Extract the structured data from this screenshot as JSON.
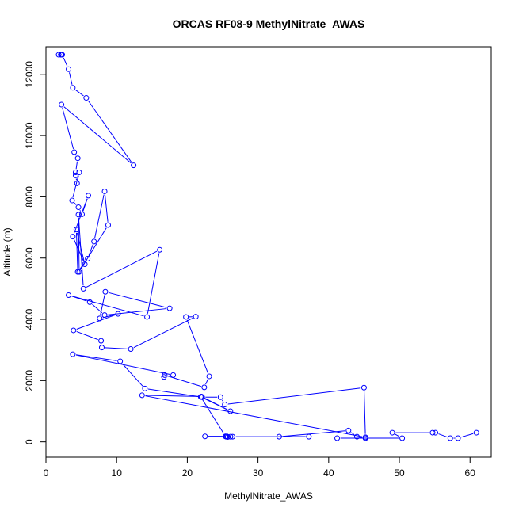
{
  "chart_data": {
    "type": "line",
    "title": "ORCAS RF08-9 MethylNitrate_AWAS",
    "xlabel": "MethylNitrate_AWAS",
    "ylabel": "Altitude (m)",
    "xlim": [
      0,
      63
    ],
    "ylim": [
      -500,
      12900
    ],
    "x_ticks": [
      0,
      10,
      20,
      30,
      40,
      50,
      60
    ],
    "y_ticks": [
      0,
      2000,
      4000,
      6000,
      8000,
      10000,
      12000
    ],
    "series_color": "#0000ff",
    "grid": false,
    "legend": "none",
    "x": [
      1.8,
      2.1,
      2.2,
      2.3,
      3.2,
      3.8,
      5.7,
      12.4,
      2.2,
      4.0,
      4.5,
      4.2,
      4.2,
      4.4,
      4.7,
      3.7,
      4.6,
      5.1,
      6.0,
      3.8,
      5.5,
      4.3,
      4.5,
      5.9,
      6.8,
      8.3,
      8.8,
      4.7,
      4.6,
      5.3,
      16.1,
      14.3,
      3.2,
      6.2,
      8.3,
      17.5,
      8.4,
      7.6,
      10.2,
      3.9,
      7.8,
      7.9,
      12.0,
      21.2,
      19.8,
      23.1,
      22.4,
      16.8,
      16.7,
      18.0,
      3.8,
      10.5,
      14.0,
      22.1,
      24.7,
      25.3,
      45.0,
      45.2,
      13.6,
      22.0,
      26.1,
      21.9,
      25.4,
      22.5,
      25.6,
      25.5,
      25.7,
      26.1,
      26.4,
      37.2,
      33.0,
      42.8,
      44.0,
      45.2,
      41.2,
      50.4,
      49.0,
      54.7,
      55.1,
      57.2,
      58.3,
      60.9
    ],
    "y": [
      12640,
      12640,
      12640,
      12640,
      12170,
      11560,
      11230,
      9030,
      11010,
      9460,
      9260,
      8800,
      8700,
      8440,
      8800,
      7880,
      7660,
      7430,
      8040,
      6700,
      5800,
      6930,
      5550,
      5980,
      6540,
      8180,
      7080,
      5550,
      7420,
      5000,
      6270,
      4080,
      4790,
      4560,
      4140,
      4360,
      4900,
      4030,
      4180,
      3640,
      3300,
      3080,
      3030,
      4090,
      4080,
      2140,
      1780,
      2180,
      2120,
      2180,
      2860,
      2630,
      1740,
      1460,
      1460,
      1220,
      1770,
      150,
      1520,
      1480,
      1000,
      1470,
      180,
      180,
      180,
      170,
      160,
      170,
      170,
      170,
      170,
      370,
      170,
      120,
      120,
      120,
      300,
      300,
      300,
      120,
      120,
      300
    ]
  }
}
